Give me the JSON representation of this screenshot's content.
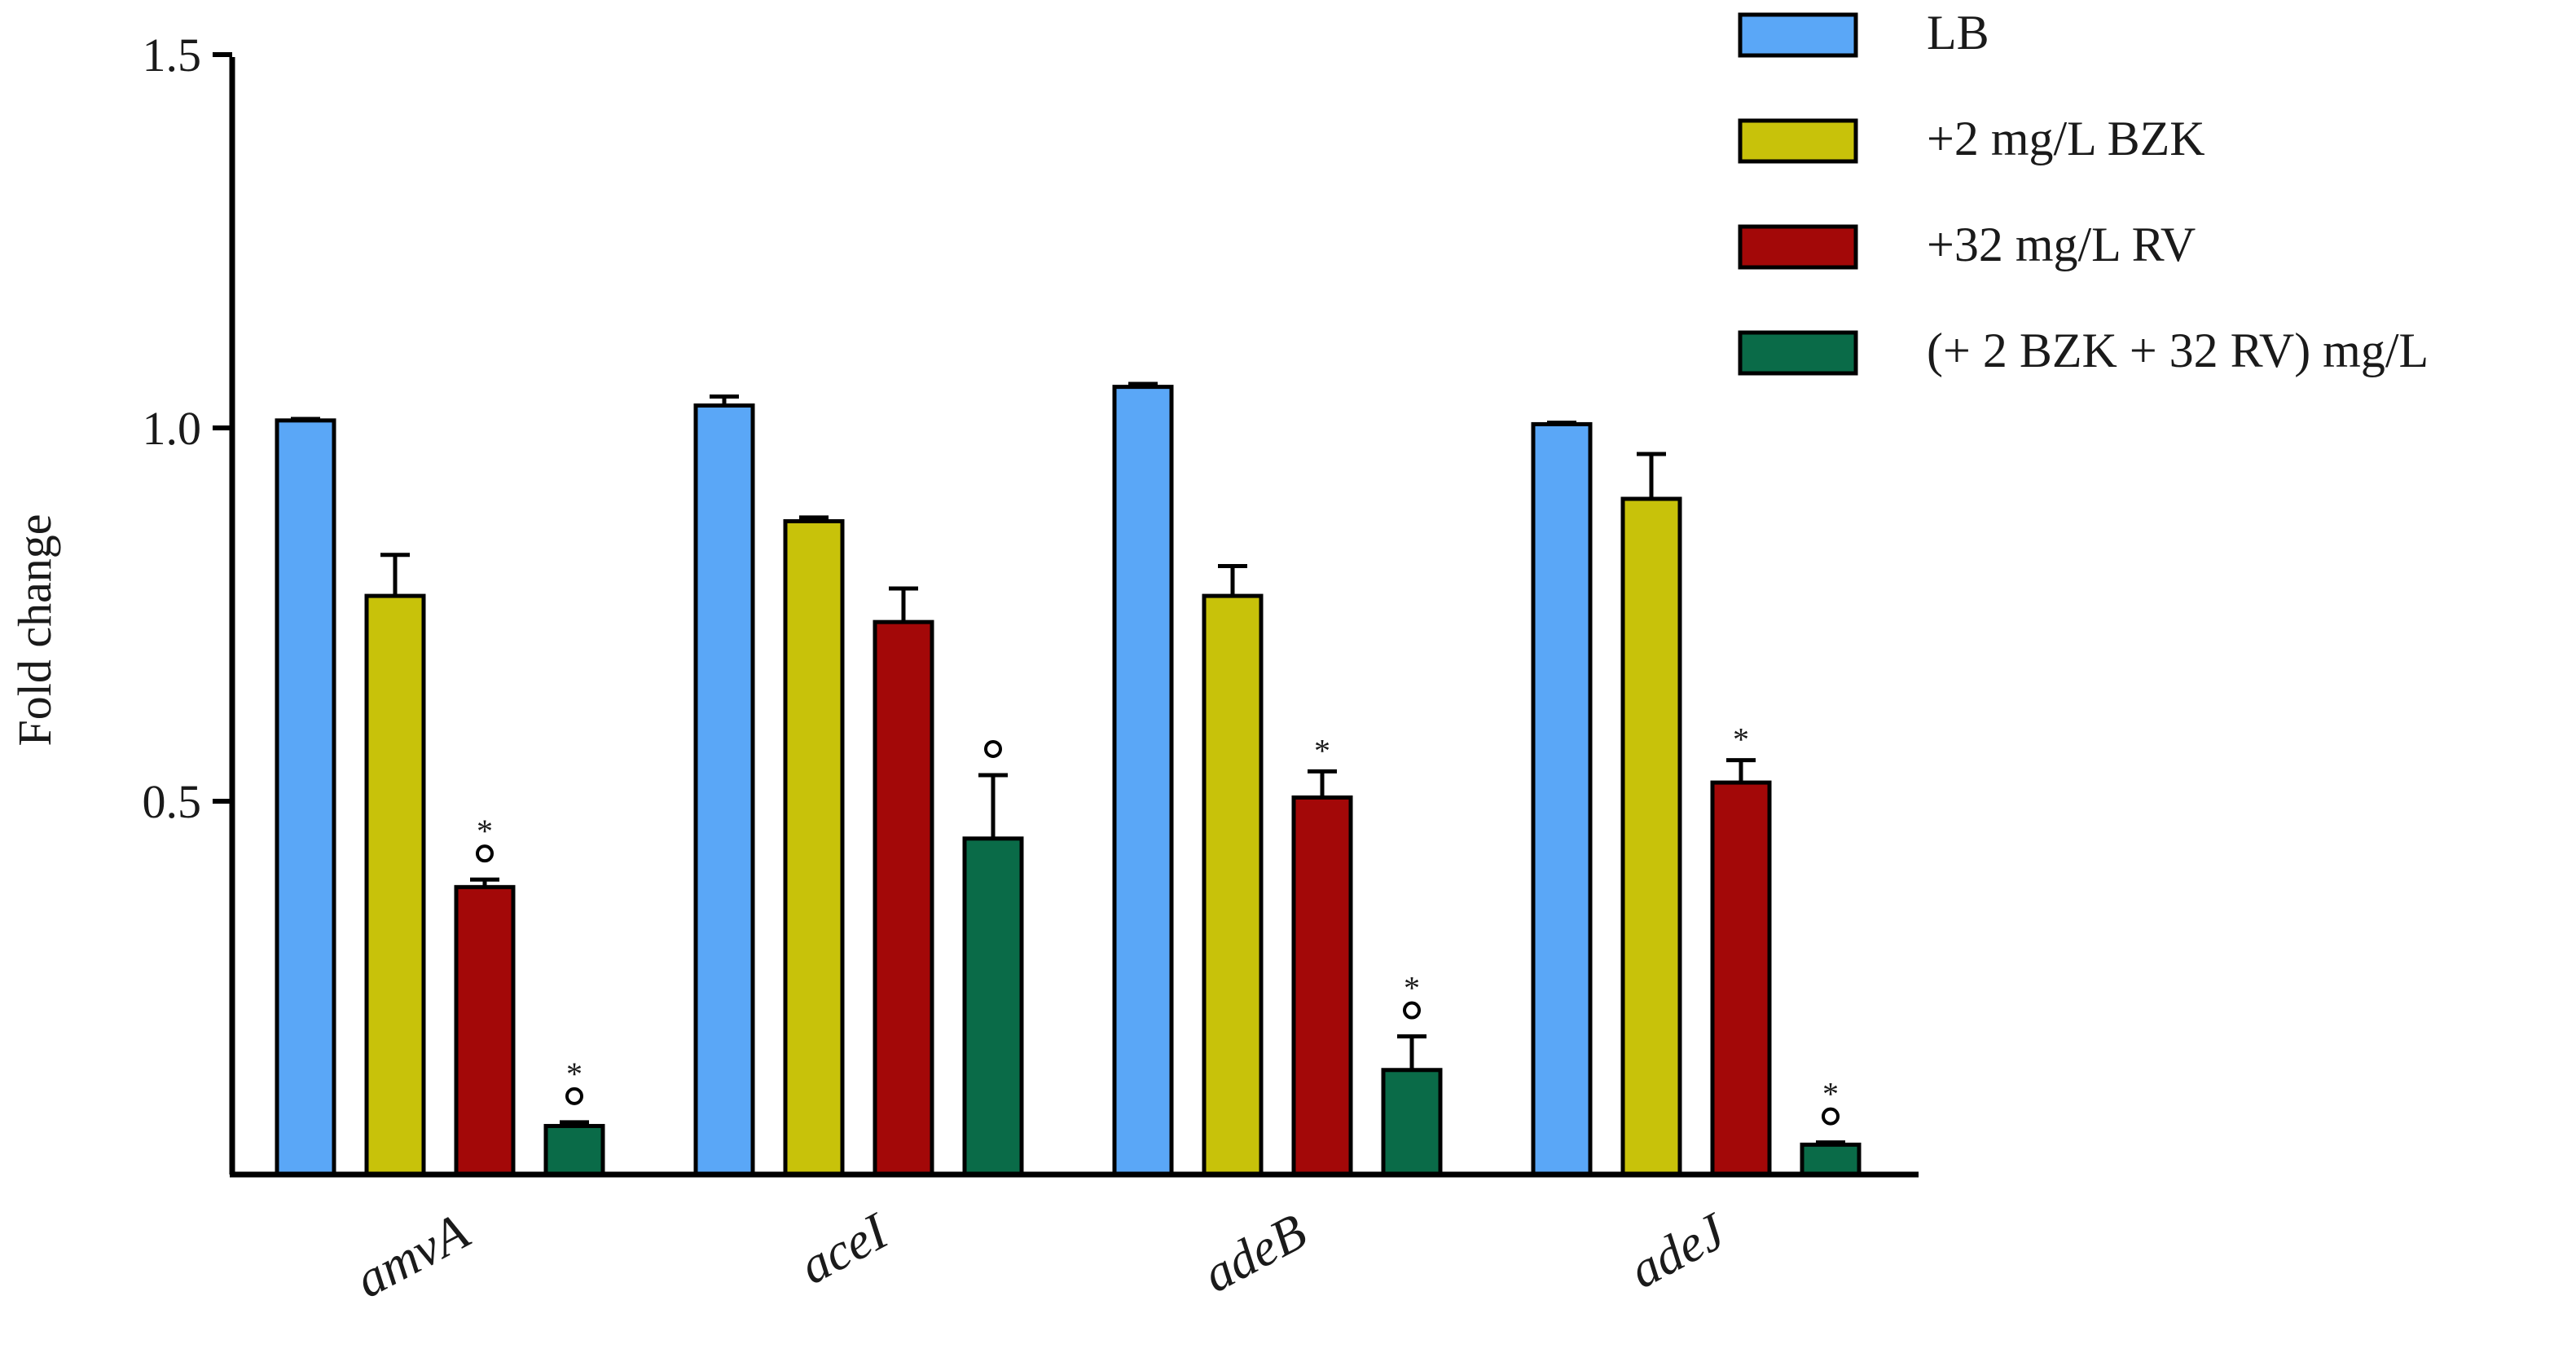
{
  "chart_data": {
    "type": "bar",
    "title": "",
    "xlabel": "",
    "ylabel": "Fold change",
    "ylim": [
      0,
      1.5
    ],
    "yticks": [
      "0.5",
      "1.0",
      "1.5"
    ],
    "categories": [
      "amvA",
      "aceI",
      "adeB",
      "adeJ"
    ],
    "series": [
      {
        "name": "LB",
        "color": "#5aa7f7",
        "values": [
          1.01,
          1.03,
          1.055,
          1.005
        ],
        "errors": [
          0.002,
          0.012,
          0.004,
          0.002
        ],
        "marks": [
          "",
          "",
          "",
          ""
        ]
      },
      {
        "name": "+2 mg/L BZK",
        "color": "#c8c20a",
        "values": [
          0.775,
          0.875,
          0.775,
          0.905
        ],
        "errors": [
          0.055,
          0.005,
          0.04,
          0.06
        ],
        "marks": [
          "",
          "",
          "",
          ""
        ]
      },
      {
        "name": "+32 mg/L RV",
        "color": "#a30808",
        "values": [
          0.385,
          0.74,
          0.505,
          0.525
        ],
        "errors": [
          0.01,
          0.045,
          0.035,
          0.03
        ],
        "marks": [
          "*\n°",
          "",
          "*",
          "*"
        ]
      },
      {
        "name": "(+ 2 BZK + 32 RV) mg/L",
        "color": "#0a6b48",
        "values": [
          0.065,
          0.45,
          0.14,
          0.04
        ],
        "errors": [
          0.005,
          0.085,
          0.045,
          0.003
        ],
        "marks": [
          "*\n°",
          "°",
          "*\n°",
          "*\n°"
        ]
      }
    ],
    "legend_position": "top-right",
    "grid": false
  }
}
